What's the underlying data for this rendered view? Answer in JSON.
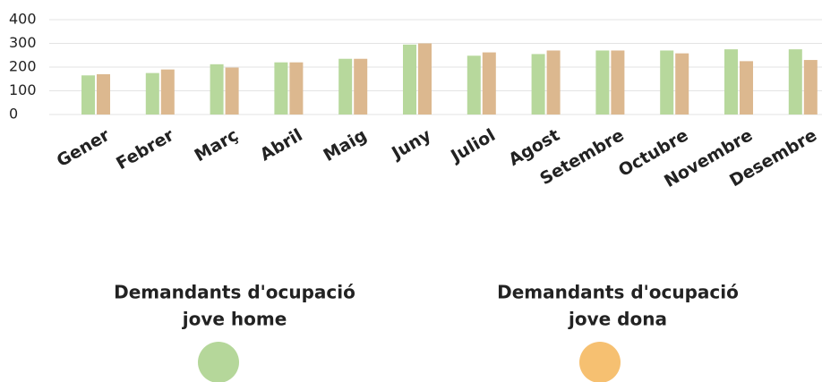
{
  "chart_data": {
    "type": "bar",
    "categories": [
      "Gener",
      "Febrer",
      "Març",
      "Abril",
      "Maig",
      "Juny",
      "Juliol",
      "Agost",
      "Setembre",
      "Octubre",
      "Novembre",
      "Desembre"
    ],
    "series": [
      {
        "name": [
          "Demandants d'ocupació",
          "jove home"
        ],
        "color": "#b7d89c",
        "marker_color": "#b5d79a",
        "values": [
          165,
          175,
          212,
          220,
          235,
          295,
          248,
          255,
          270,
          270,
          275,
          275
        ]
      },
      {
        "name": [
          "Demandants d'ocupació",
          "jove dona"
        ],
        "color": "#dcb88f",
        "marker_color": "#f6c071",
        "values": [
          170,
          190,
          198,
          220,
          235,
          300,
          262,
          270,
          270,
          258,
          225,
          230
        ]
      }
    ],
    "ylim": [
      0,
      400
    ],
    "yticks": [
      0,
      100,
      200,
      300,
      400
    ],
    "grid": true
  }
}
